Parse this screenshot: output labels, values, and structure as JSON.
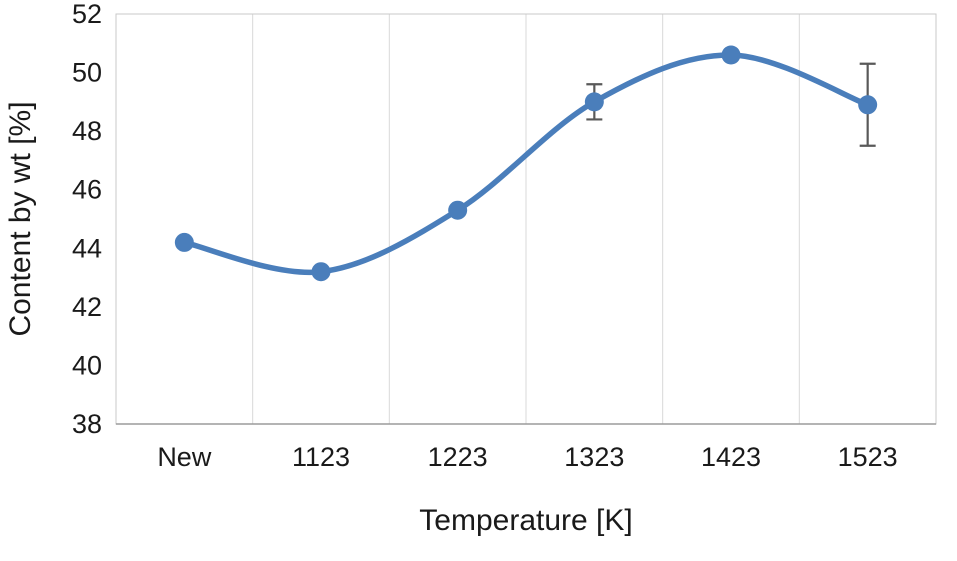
{
  "chart_data": {
    "type": "line",
    "categories": [
      "New",
      "1123",
      "1223",
      "1323",
      "1423",
      "1523"
    ],
    "series": [
      {
        "name": "Content by wt",
        "values": [
          44.2,
          43.2,
          45.3,
          49.0,
          50.6,
          48.9
        ]
      }
    ],
    "error_bars": [
      {
        "index": 3,
        "plus": 0.6,
        "minus": 0.6
      },
      {
        "index": 5,
        "plus": 1.4,
        "minus": 1.4
      }
    ],
    "title": "",
    "xlabel": "Temperature [K]",
    "ylabel": "Content by wt [%]",
    "ylim": [
      38,
      52
    ],
    "ytick_step": 2,
    "grid": "vertical",
    "legend": "none",
    "line_color": "#4a7ebb",
    "marker_color": "#4a7ebb",
    "error_bar_color": "#595959",
    "gridline_color": "#d9d9d9",
    "border_color": "#c9c9c9",
    "axis_line_color": "#9b9b9b",
    "text_color": "#1a1a1a"
  }
}
